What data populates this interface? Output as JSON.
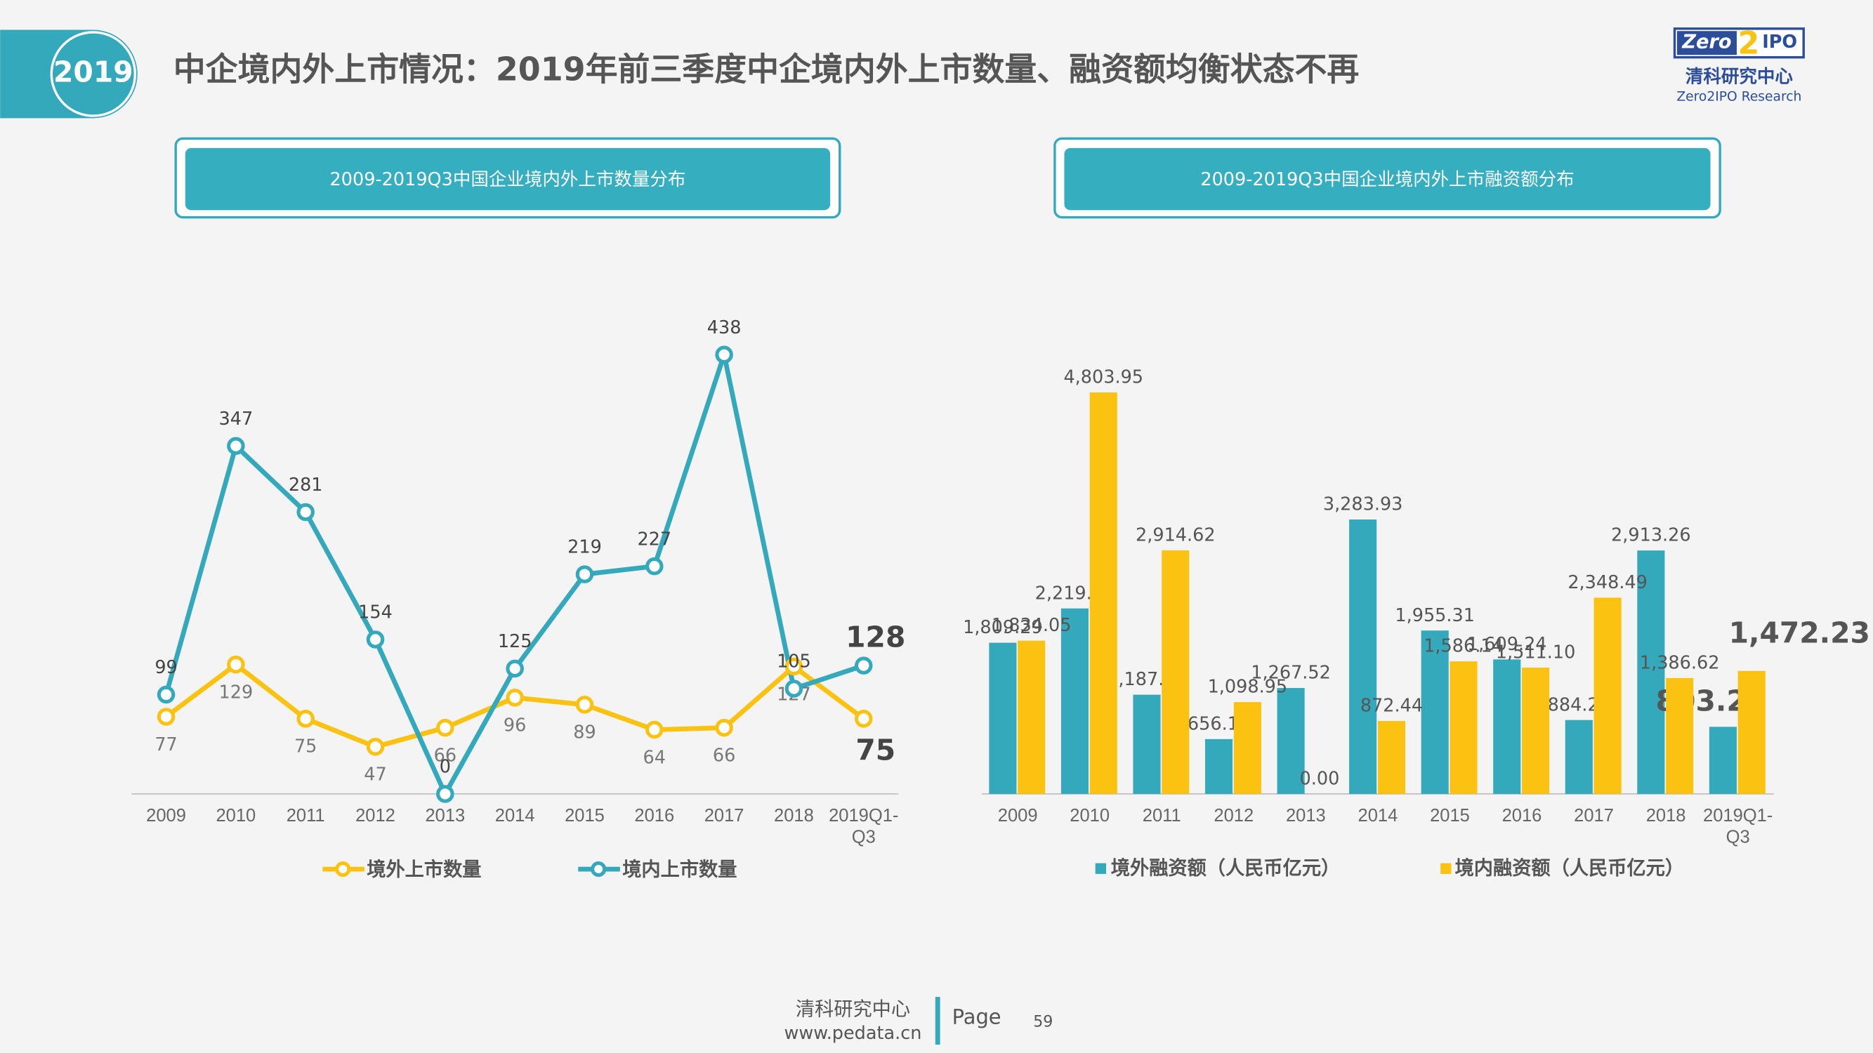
{
  "header": {
    "badge": "2019",
    "title": "中企境内外上市情况：2019年前三季度中企境内外上市数量、融资额均衡状态不再"
  },
  "logo": {
    "brand_left": "Zero",
    "brand_mid": "2",
    "brand_right": "IPO",
    "name": "清科研究中心",
    "english": "Zero2IPO Research"
  },
  "chart_data": [
    {
      "type": "line",
      "title": "2009-2019Q3中国企业境内外上市数量分布",
      "categories": [
        "2009",
        "2010",
        "2011",
        "2012",
        "2013",
        "2014",
        "2015",
        "2016",
        "2017",
        "2018",
        "2019Q1-Q3"
      ],
      "series": [
        {
          "name": "境外上市数量",
          "color": "#fbc212",
          "values": [
            77,
            129,
            75,
            47,
            66,
            96,
            89,
            64,
            66,
            127,
            75
          ]
        },
        {
          "name": "境内上市数量",
          "color": "#35a9bc",
          "values": [
            99,
            347,
            281,
            154,
            0,
            125,
            219,
            227,
            438,
            105,
            128
          ]
        }
      ],
      "ylim": [
        0,
        500
      ]
    },
    {
      "type": "bar",
      "title": "2009-2019Q3中国企业境内外上市融资额分布",
      "categories": [
        "2009",
        "2010",
        "2011",
        "2012",
        "2013",
        "2014",
        "2015",
        "2016",
        "2017",
        "2018",
        "2019Q1-Q3"
      ],
      "series": [
        {
          "name": "境外融资额（人民币亿元）",
          "color": "#35a9bc",
          "values": [
            1809.29,
            2219.65,
            1187.53,
            656.16,
            1267.52,
            3283.93,
            1955.31,
            1609.24,
            884.26,
            2913.26,
            803.27
          ],
          "value_labels": [
            "1,809.29",
            "2,219.65",
            "1,187.53",
            "656.16",
            "1,267.52",
            "3,283.93",
            "1,955.31",
            "1,609.24",
            "884.26",
            "2,913.26",
            "803.27"
          ]
        },
        {
          "name": "境内融资额（人民币亿元）",
          "color": "#fbc212",
          "values": [
            1834.05,
            4803.95,
            2914.62,
            1098.95,
            0.0,
            872.44,
            1586.14,
            1511.1,
            2348.49,
            1386.62,
            1472.23
          ],
          "value_labels": [
            "1,834.05",
            "4,803.95",
            "2,914.62",
            "1,098.95",
            "0.00",
            "872.44",
            "1,586.14",
            "1,511.10",
            "2,348.49",
            "1,386.62",
            "1,472.23"
          ]
        }
      ],
      "ylim": [
        0,
        6000
      ]
    }
  ],
  "footer": {
    "org": "清科研究中心",
    "url": "www.pedata.cn",
    "page_label": "Page",
    "page": 59
  }
}
